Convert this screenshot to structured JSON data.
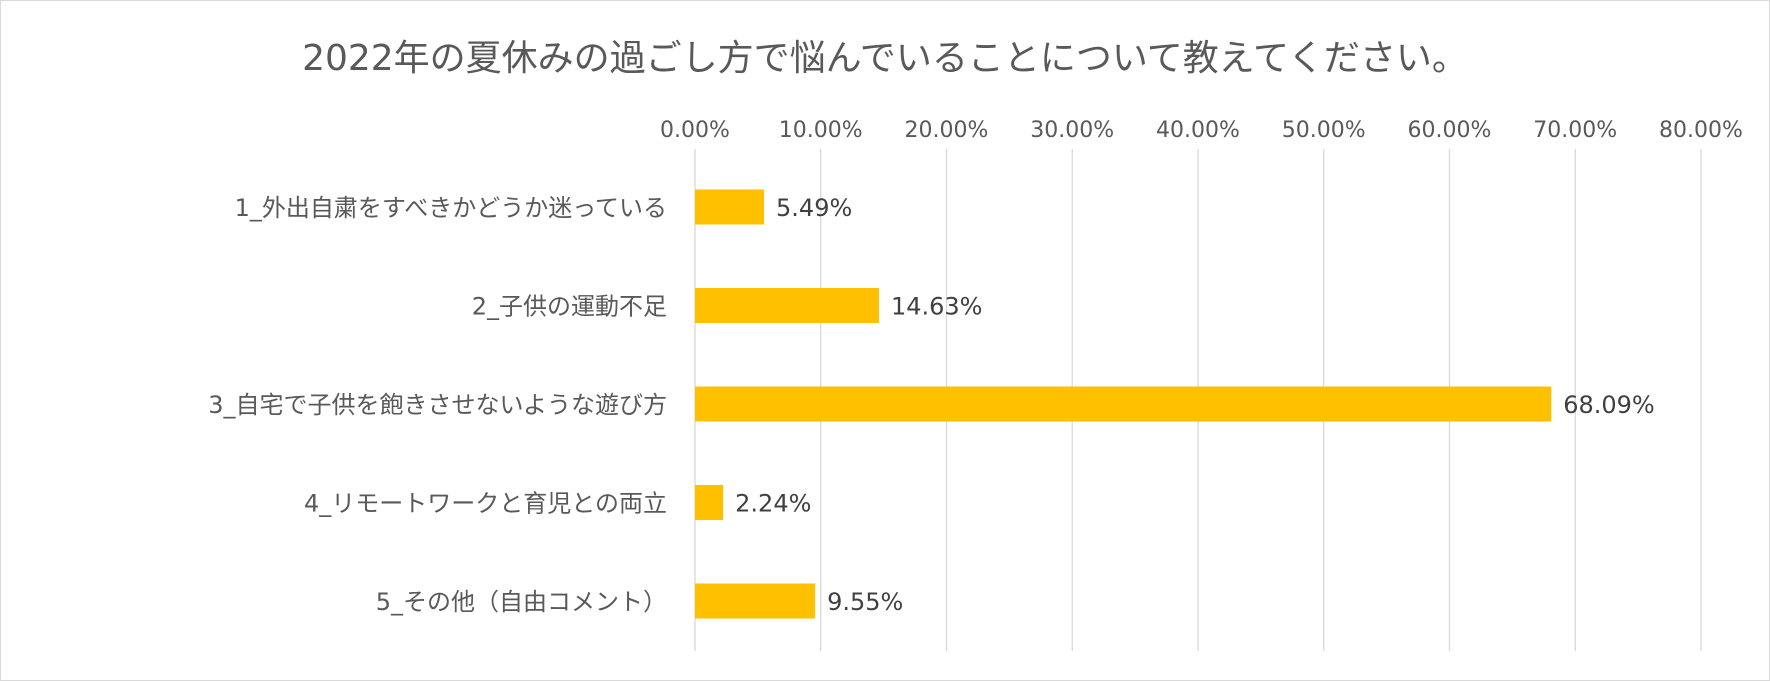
{
  "chart_data": {
    "type": "bar",
    "orientation": "horizontal",
    "title": "2022年の夏休みの過ごし方で悩んでいることについて教えてください。",
    "categories": [
      "1_外出自粛をすべきかどうか迷っている",
      "2_子供の運動不足",
      "3_自宅で子供を飽きさせないような遊び方",
      "4_リモートワークと育児との両立",
      "5_その他（自由コメント）"
    ],
    "values": [
      5.49,
      14.63,
      68.09,
      2.24,
      9.55
    ],
    "data_labels": [
      "5.49%",
      "14.63%",
      "68.09%",
      "2.24%",
      "9.55%"
    ],
    "xlim": [
      0,
      80
    ],
    "x_ticks": [
      0,
      10,
      20,
      30,
      40,
      50,
      60,
      70,
      80
    ],
    "x_tick_labels": [
      "0.00%",
      "10.00%",
      "20.00%",
      "30.00%",
      "40.00%",
      "50.00%",
      "60.00%",
      "70.00%",
      "80.00%"
    ],
    "x_axis_position": "top",
    "grid": true,
    "legend": "none",
    "colors": {
      "bar": "#ffc000",
      "grid": "#d9d9d9",
      "text": "#595959",
      "data_label": "#404040"
    }
  }
}
